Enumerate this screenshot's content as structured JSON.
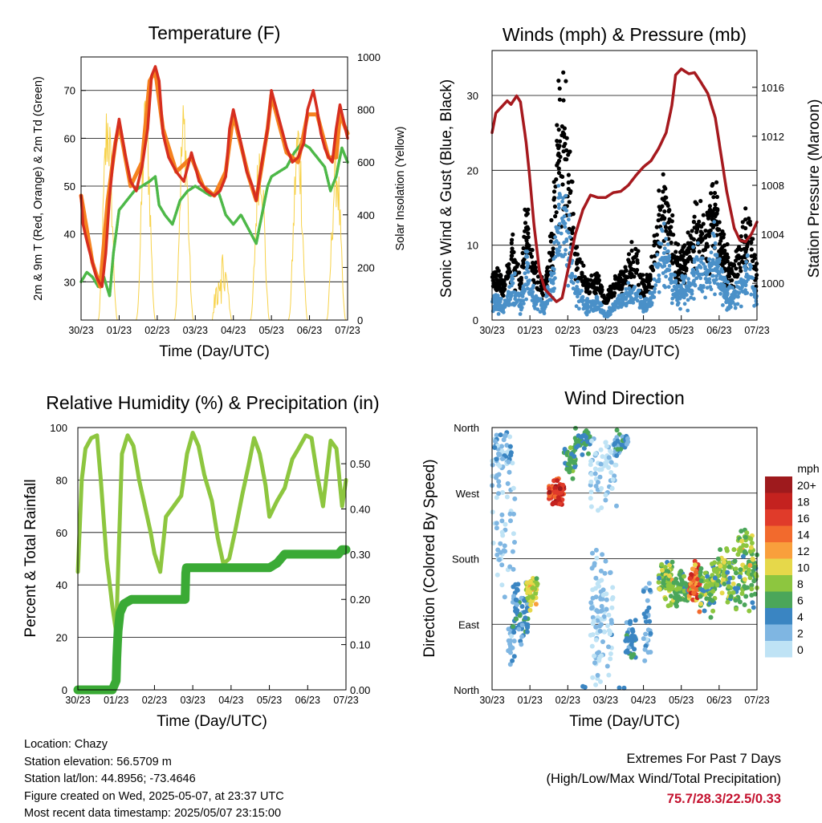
{
  "chart_data": [
    {
      "type": "line",
      "title": "Temperature (F)",
      "xlabel": "Time (Day/UTC)",
      "ylabel": "2m & 9m T (Red, Orange) & 2m Td (Green)",
      "y2label": "Solar Insolation (Yellow)",
      "categories": [
        "30/23",
        "01/23",
        "02/23",
        "03/23",
        "04/23",
        "05/23",
        "06/23",
        "07/23"
      ],
      "ylim": [
        22,
        77
      ],
      "yticks": [
        30,
        40,
        50,
        60,
        70
      ],
      "y2lim": [
        0,
        1000
      ],
      "y2ticks": [
        0,
        200,
        400,
        600,
        800,
        1000
      ],
      "grid": true,
      "series": [
        {
          "color": "#d62e1f",
          "x": [
            0,
            0.05,
            0.2,
            0.3,
            0.4,
            0.55,
            0.65,
            0.75,
            0.85,
            0.92,
            1.0,
            1.15,
            1.3,
            1.45,
            1.6,
            1.75,
            1.85,
            1.95,
            2.05,
            2.15,
            2.3,
            2.5,
            2.7,
            2.8,
            2.9,
            3.0,
            3.1,
            3.3,
            3.5,
            3.65,
            3.8,
            3.9,
            4.0,
            4.2,
            4.35,
            4.5,
            4.6,
            4.75,
            4.9,
            5.0,
            5.2,
            5.4,
            5.55,
            5.7,
            5.85,
            5.95,
            6.1,
            6.2,
            6.3,
            6.4,
            6.5,
            6.6,
            6.7,
            6.8,
            7.0
          ],
          "values": [
            48,
            42,
            37,
            34,
            31,
            29,
            36,
            48,
            56,
            60,
            64,
            57,
            51,
            49,
            54,
            62,
            73,
            75,
            72,
            61,
            56,
            53,
            51,
            54,
            57,
            54,
            51,
            49,
            48,
            49,
            52,
            62,
            66,
            59,
            53,
            50,
            47,
            55,
            62,
            70,
            64,
            58,
            55,
            56,
            59,
            66,
            70,
            66,
            61,
            58,
            56,
            55,
            62,
            67,
            60
          ]
        },
        {
          "color": "#f5821f",
          "x": [
            0,
            0.3,
            0.5,
            0.7,
            0.9,
            1.0,
            1.3,
            1.6,
            1.8,
            1.95,
            2.15,
            2.5,
            2.9,
            3.2,
            3.5,
            3.8,
            4.0,
            4.4,
            4.6,
            4.9,
            5.0,
            5.4,
            5.7,
            5.95,
            6.2,
            6.5,
            6.7,
            6.8,
            7.0
          ],
          "values": [
            48,
            34,
            29,
            47,
            59,
            63,
            50,
            55,
            72,
            74,
            62,
            53,
            56,
            50,
            48,
            53,
            65,
            52,
            47,
            62,
            69,
            57,
            55,
            65,
            65,
            56,
            56,
            65,
            61
          ]
        },
        {
          "color": "#4db848",
          "x": [
            0,
            0.15,
            0.3,
            0.45,
            0.6,
            0.75,
            0.85,
            1.0,
            1.2,
            1.4,
            1.6,
            1.8,
            1.95,
            2.05,
            2.2,
            2.4,
            2.6,
            2.8,
            3.0,
            3.2,
            3.4,
            3.6,
            3.8,
            4.0,
            4.2,
            4.4,
            4.6,
            4.75,
            4.9,
            5.0,
            5.2,
            5.4,
            5.6,
            5.8,
            6.0,
            6.2,
            6.4,
            6.55,
            6.7,
            6.85,
            7.0
          ],
          "values": [
            30,
            32,
            31,
            29,
            31,
            27,
            36,
            45,
            47,
            49,
            50,
            51,
            52,
            46,
            44,
            42,
            47,
            49,
            50,
            49,
            48,
            49,
            44,
            42,
            44,
            41,
            38,
            44,
            50,
            52,
            53,
            54,
            57,
            59,
            58,
            56,
            54,
            49,
            52,
            58,
            55
          ]
        }
      ]
    },
    {
      "type": "scatter",
      "title": "Winds (mph) & Pressure (mb)",
      "xlabel": "Time (Day/UTC)",
      "ylabel": "Sonic Wind & Gust (Blue, Black)",
      "y2label": "Station Pressure (Maroon)",
      "categories": [
        "30/23",
        "01/23",
        "02/23",
        "03/23",
        "04/23",
        "05/23",
        "06/23",
        "07/23"
      ],
      "ylim": [
        0,
        36
      ],
      "yticks": [
        0,
        10,
        20,
        30
      ],
      "y2lim": [
        997.0,
        1019.0
      ],
      "y2ticks": [
        1000,
        1004,
        1008,
        1012,
        1016
      ],
      "grid": true,
      "series": [
        {
          "color": "#a6191e",
          "type": "line",
          "x": [
            0,
            0.1,
            0.25,
            0.4,
            0.5,
            0.65,
            0.75,
            0.9,
            1.0,
            1.1,
            1.25,
            1.4,
            1.55,
            1.7,
            1.85,
            2.0,
            2.2,
            2.4,
            2.6,
            2.8,
            3.0,
            3.2,
            3.4,
            3.6,
            3.8,
            4.0,
            4.2,
            4.4,
            4.6,
            4.75,
            4.85,
            5.0,
            5.2,
            5.35,
            5.5,
            5.7,
            5.9,
            6.0,
            6.2,
            6.4,
            6.55,
            6.7,
            6.85,
            7.0
          ],
          "values": [
            1012.3,
            1013.9,
            1014.4,
            1014.9,
            1014.6,
            1015.3,
            1014.8,
            1011.5,
            1008.5,
            1005.0,
            1001.0,
            999.5,
            999.0,
            998.5,
            998.8,
            1001.0,
            1004.0,
            1006.0,
            1007.2,
            1007.0,
            1007.0,
            1007.4,
            1007.5,
            1008.0,
            1008.8,
            1009.5,
            1010.0,
            1011.0,
            1012.3,
            1014.5,
            1017.0,
            1017.5,
            1017.1,
            1017.2,
            1016.5,
            1015.5,
            1013.5,
            1011.5,
            1007.5,
            1004.5,
            1003.5,
            1003.4,
            1004.0,
            1005.0
          ]
        }
      ]
    },
    {
      "type": "line",
      "title": "Relative Humidity (%) & Precipitation (in)",
      "xlabel": "Time (Day/UTC)",
      "ylabel": "Percent & Total Rainfall",
      "categories": [
        "30/23",
        "01/23",
        "02/23",
        "03/23",
        "04/23",
        "05/23",
        "06/23",
        "07/23"
      ],
      "ylim": [
        0,
        100
      ],
      "yticks": [
        0,
        20,
        40,
        60,
        80,
        100
      ],
      "y2lim": [
        0,
        0.58
      ],
      "y2ticks": [
        "0.00",
        "0.10",
        "0.20",
        "0.30",
        "0.40",
        "0.50"
      ],
      "grid": true,
      "series": [
        {
          "color": "#8dc63f",
          "type": "line",
          "x": [
            0,
            0.1,
            0.2,
            0.35,
            0.5,
            0.6,
            0.75,
            0.9,
            1.0,
            1.05,
            1.15,
            1.3,
            1.45,
            1.6,
            1.75,
            1.9,
            2.0,
            2.15,
            2.3,
            2.5,
            2.7,
            2.85,
            3.0,
            3.15,
            3.3,
            3.5,
            3.65,
            3.8,
            3.95,
            4.1,
            4.3,
            4.45,
            4.6,
            4.75,
            4.9,
            5.0,
            5.2,
            5.4,
            5.6,
            5.8,
            5.95,
            6.1,
            6.25,
            6.4,
            6.6,
            6.75,
            6.9,
            7.0
          ],
          "values": [
            45,
            80,
            92,
            96,
            97,
            80,
            50,
            32,
            22,
            45,
            90,
            97,
            93,
            80,
            70,
            60,
            52,
            45,
            66,
            70,
            74,
            90,
            98,
            93,
            82,
            72,
            58,
            48,
            50,
            60,
            75,
            85,
            96,
            90,
            78,
            66,
            72,
            77,
            88,
            93,
            97,
            96,
            82,
            70,
            95,
            92,
            70,
            80
          ]
        },
        {
          "color": "#3aaa35",
          "type": "line",
          "axis": "right",
          "x": [
            0,
            0.9,
            1.0,
            1.02,
            1.05,
            1.1,
            1.2,
            1.4,
            1.7,
            2.0,
            2.5,
            2.8,
            2.82,
            3.0,
            3.5,
            4.0,
            4.5,
            5.0,
            5.2,
            5.4,
            5.6,
            5.8,
            6.0,
            6.4,
            6.8,
            6.9,
            7.0
          ],
          "values": [
            0,
            0,
            0.02,
            0.08,
            0.13,
            0.17,
            0.19,
            0.2,
            0.2,
            0.2,
            0.2,
            0.2,
            0.27,
            0.27,
            0.27,
            0.27,
            0.27,
            0.27,
            0.28,
            0.3,
            0.3,
            0.3,
            0.3,
            0.3,
            0.3,
            0.31,
            0.31
          ]
        }
      ]
    },
    {
      "type": "scatter",
      "title": "Wind Direction",
      "xlabel": "Time (Day/UTC)",
      "ylabel": "Direction (Colored By Speed)",
      "categories": [
        "30/23",
        "01/23",
        "02/23",
        "03/23",
        "04/23",
        "05/23",
        "06/23",
        "07/23"
      ],
      "yticks": [
        "North",
        "West",
        "South",
        "East",
        "North"
      ],
      "grid": true,
      "legend": {
        "title": "mph",
        "labels": [
          "20+",
          "18",
          "16",
          "14",
          "12",
          "10",
          "8",
          "6",
          "4",
          "2",
          "0"
        ],
        "colors": [
          "#9e1a1d",
          "#c4221f",
          "#e03b2a",
          "#f26a2d",
          "#f99f3c",
          "#e6d84a",
          "#8dc63f",
          "#4ba65a",
          "#3a85c2",
          "#7fb6e2",
          "#bfe3f5"
        ]
      }
    }
  ],
  "info": {
    "location": "Location: Chazy",
    "elevation": "Station elevation: 56.5709 m",
    "latlon": "Station lat/lon: 44.8956; -73.4646",
    "created": "Figure created on Wed, 2025-05-07, at 23:37 UTC",
    "recent": "Most recent data timestamp: 2025/05/07 23:15:00"
  },
  "extremes": {
    "title": "Extremes For Past 7 Days",
    "subtitle": "(High/Low/Max Wind/Total Precipitation)",
    "values": "75.7/28.3/22.5/0.33"
  }
}
